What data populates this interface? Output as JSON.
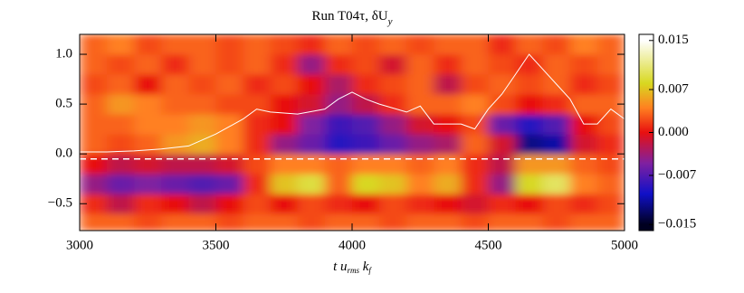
{
  "chart_data": {
    "type": "heatmap",
    "title": [
      "Run T04τ, δU",
      "y"
    ],
    "xlabel": [
      "t  u",
      "rms",
      " k",
      "f"
    ],
    "xlim": [
      3000,
      5000
    ],
    "xticks": [
      3000,
      3500,
      4000,
      4500,
      5000
    ],
    "ylim": [
      -0.77,
      1.2
    ],
    "yticks": [
      {
        "value": -0.5,
        "label": "−0.5"
      },
      {
        "value": 0,
        "label": "0.0"
      },
      0.5,
      {
        "value": 1,
        "label": "1.0"
      }
    ],
    "x_edges": [
      3000,
      3100,
      3200,
      3300,
      3400,
      3500,
      3600,
      3700,
      3800,
      3900,
      4000,
      4100,
      4200,
      4300,
      4400,
      4500,
      4600,
      4700,
      4800,
      4900,
      5000
    ],
    "y_edges": [
      -0.77,
      -0.6,
      -0.4,
      -0.2,
      0,
      0.2,
      0.4,
      0.6,
      0.8,
      1.0,
      1.2
    ],
    "z": [
      [
        0.003,
        0.003,
        0.002,
        0.003,
        0.003,
        0.002,
        0.003,
        0.003,
        0.002,
        0.003,
        0.003,
        0.002,
        0.003,
        0.003,
        0.002,
        0.003,
        0.003,
        0.002,
        0.003,
        0.003
      ],
      [
        0.001,
        -0.002,
        0.001,
        0,
        -0.002,
        0,
        0.002,
        0,
        0.002,
        0.001,
        0,
        0.002,
        0.001,
        0,
        -0.001,
        0.001,
        0,
        0.002,
        0.001,
        0.002
      ],
      [
        -0.004,
        -0.006,
        -0.005,
        -0.006,
        -0.007,
        -0.006,
        0.001,
        0.007,
        0.009,
        0.003,
        0.008,
        0.007,
        0.004,
        0.006,
        0.001,
        -0.004,
        0.008,
        0.01,
        0.004,
        0.003
      ],
      [
        0,
        -0.002,
        -0.001,
        -0.002,
        -0.002,
        -0.001,
        0.002,
        0.004,
        0.004,
        0.003,
        0.004,
        0.004,
        0.003,
        0.004,
        0.001,
        -0.002,
        0.005,
        0.005,
        0.003,
        0.002
      ],
      [
        0.003,
        0.002,
        0.003,
        0.005,
        0.006,
        0.004,
        0.001,
        -0.004,
        -0.006,
        -0.009,
        -0.008,
        -0.006,
        -0.004,
        -0.003,
        0.003,
        -0.001,
        -0.012,
        -0.011,
        -0.001,
        0.001
      ],
      [
        0.003,
        0.003,
        0.004,
        0.004,
        0.005,
        0.004,
        0.001,
        0,
        -0.005,
        -0.008,
        -0.007,
        -0.004,
        -0.001,
        0,
        0.002,
        -0.006,
        -0.009,
        -0.007,
        0,
        0.002
      ],
      [
        0.003,
        0.005,
        0.004,
        0.003,
        0.003,
        0.002,
        0.002,
        0,
        -0.001,
        -0.004,
        -0.002,
        0.001,
        0.003,
        0.003,
        0.004,
        0.002,
        0,
        0.001,
        0.003,
        0.003
      ],
      [
        0.002,
        0.003,
        0,
        0.003,
        0.002,
        0.003,
        0.001,
        0.002,
        0,
        -0.003,
        0.001,
        0.002,
        0.003,
        -0.002,
        0.002,
        0.003,
        0.002,
        0.003,
        0.001,
        0.002
      ],
      [
        0.003,
        0.002,
        0.003,
        0.001,
        0.003,
        0.002,
        0.003,
        0.001,
        -0.004,
        0.001,
        0.002,
        -0.001,
        0.003,
        0.001,
        0.003,
        0.002,
        0.001,
        0.003,
        0.002,
        0.003
      ],
      [
        0.003,
        0.004,
        0.002,
        0.003,
        0.003,
        0.002,
        0.003,
        0.002,
        0.001,
        0.003,
        0.002,
        0.003,
        0.002,
        0.003,
        0.003,
        0.001,
        0.003,
        0.002,
        0.004,
        0.003
      ]
    ],
    "zlim": [
      -0.016,
      0.016
    ],
    "zticks": [
      {
        "value": -0.015,
        "label": "−0.015"
      },
      {
        "value": -0.007,
        "label": "−0.007"
      },
      {
        "value": 0,
        "label": "0.000"
      },
      0.007,
      0.015
    ],
    "colormap": [
      {
        "value": -0.015,
        "color": "#000020"
      },
      {
        "value": -0.01,
        "color": "#1010c8"
      },
      {
        "value": -0.005,
        "color": "#8020a0"
      },
      {
        "value": 0,
        "color": "#e81010"
      },
      {
        "value": 0.004,
        "color": "#ff8020"
      },
      {
        "value": 0.008,
        "color": "#d8d820"
      },
      {
        "value": 0.015,
        "color": "#ffffff"
      }
    ],
    "curve": {
      "color": "#ffffff",
      "x": [
        3000,
        3100,
        3200,
        3300,
        3400,
        3500,
        3600,
        3650,
        3700,
        3800,
        3900,
        3950,
        4000,
        4050,
        4100,
        4200,
        4250,
        4300,
        4400,
        4450,
        4500,
        4550,
        4600,
        4650,
        4700,
        4750,
        4800,
        4850,
        4900,
        4950,
        5000
      ],
      "y": [
        0.02,
        0.02,
        0.03,
        0.05,
        0.08,
        0.2,
        0.35,
        0.45,
        0.42,
        0.4,
        0.45,
        0.55,
        0.62,
        0.55,
        0.5,
        0.42,
        0.48,
        0.3,
        0.3,
        0.25,
        0.45,
        0.6,
        0.8,
        1.0,
        0.85,
        0.7,
        0.55,
        0.3,
        0.3,
        0.45,
        0.35
      ]
    },
    "reference_line": -0.05
  }
}
